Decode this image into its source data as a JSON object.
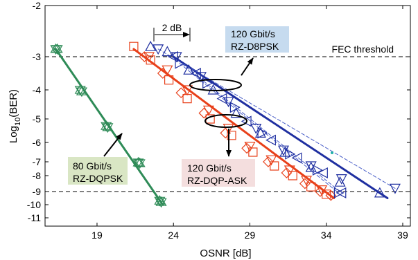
{
  "chart_data": {
    "type": "scatter",
    "title": "",
    "xlabel": "OSNR [dB]",
    "ylabel_main": "Log",
    "ylabel_sub": "10",
    "ylabel_tail": "(BER)",
    "xlim": [
      15.6,
      39.5
    ],
    "x_ticks": [
      19,
      24,
      29,
      34,
      39
    ],
    "y_ticks": [
      {
        "value": -2,
        "label": "-2"
      },
      {
        "value": -3,
        "label": "-3"
      },
      {
        "value": -4,
        "label": "-4"
      },
      {
        "value": -5,
        "label": "-5"
      },
      {
        "value": -6,
        "label": "-6"
      },
      {
        "value": -7,
        "label": "-7"
      },
      {
        "value": -8,
        "label": "-8"
      },
      {
        "value": -9,
        "label": "-9"
      },
      {
        "value": -10,
        "label": "-10"
      },
      {
        "value": -11,
        "label": "-11"
      }
    ],
    "grid": false,
    "threshold": {
      "label": "FEC threshold"
    },
    "annotations": {
      "db_marker": "2 dB",
      "label_80_line1": "80 Gbit/s",
      "label_80_line2": "RZ-DQPSK",
      "label_d8_line1": "120 Gbit/s",
      "label_d8_line2": "RZ-D8PSK",
      "label_ask_line1": "120 Gbit/s",
      "label_ask_line2": "RZ-DQP-ASK"
    },
    "colors": {
      "green": "#2e8b57",
      "red": "#e8401a",
      "blue": "#1f2fa0",
      "blue_light": "#4a5fc8",
      "box_green": "#d9e6c4",
      "box_blue": "#c6dbef",
      "box_red": "#f4dede"
    },
    "series": [
      {
        "id": "g1",
        "color": "green",
        "marker": "star",
        "points": [
          [
            16.3,
            -2.85
          ],
          [
            17.9,
            -4.0
          ],
          [
            19.6,
            -5.3
          ],
          [
            21.7,
            -7.05
          ],
          [
            23.1,
            -9.7
          ]
        ]
      },
      {
        "id": "g2",
        "color": "green",
        "marker": "star",
        "points": [
          [
            16.4,
            -2.85
          ],
          [
            18.0,
            -4.05
          ],
          [
            19.7,
            -5.35
          ],
          [
            21.8,
            -7.1
          ],
          [
            23.2,
            -9.8
          ]
        ]
      },
      {
        "id": "r_squares",
        "color": "red",
        "marker": "square",
        "points": [
          [
            21.4,
            -2.8
          ],
          [
            22.5,
            -3.1
          ],
          [
            23.7,
            -3.7
          ],
          [
            24.9,
            -4.3
          ],
          [
            26.4,
            -5.0
          ],
          [
            27.8,
            -5.7
          ],
          [
            29.2,
            -6.5
          ],
          [
            30.6,
            -7.3
          ],
          [
            31.8,
            -8.0
          ],
          [
            33.0,
            -8.7
          ],
          [
            34.0,
            -9.2
          ]
        ]
      },
      {
        "id": "r_diamonds",
        "color": "red",
        "marker": "diamond",
        "points": [
          [
            22.1,
            -3.0
          ],
          [
            23.3,
            -3.5
          ],
          [
            24.5,
            -4.1
          ],
          [
            26.0,
            -4.8
          ],
          [
            27.4,
            -5.6
          ],
          [
            28.8,
            -6.3
          ],
          [
            30.2,
            -7.0
          ],
          [
            31.4,
            -7.8
          ],
          [
            32.6,
            -8.5
          ],
          [
            33.6,
            -9.0
          ],
          [
            34.3,
            -9.3
          ]
        ]
      },
      {
        "id": "r_triangles",
        "color": "red",
        "marker": "tri-down",
        "points": [
          [
            22.4,
            -3.0
          ],
          [
            23.6,
            -3.4
          ],
          [
            24.9,
            -4.0
          ],
          [
            26.3,
            -4.7
          ],
          [
            27.6,
            -5.4
          ],
          [
            29.0,
            -6.2
          ],
          [
            30.4,
            -6.9
          ],
          [
            31.6,
            -7.6
          ],
          [
            32.7,
            -8.3
          ],
          [
            33.7,
            -8.9
          ]
        ]
      },
      {
        "id": "b_up",
        "color": "blue",
        "marker": "tri-up",
        "points": [
          [
            22.5,
            -2.8
          ],
          [
            23.6,
            -2.9
          ],
          [
            25.0,
            -3.4
          ],
          [
            26.6,
            -4.0
          ],
          [
            28.1,
            -4.8
          ],
          [
            29.7,
            -5.6
          ],
          [
            31.3,
            -6.5
          ],
          [
            33.0,
            -7.4
          ],
          [
            34.9,
            -8.4
          ],
          [
            37.5,
            -9.1
          ]
        ]
      },
      {
        "id": "b_down",
        "color": "blue",
        "marker": "tri-down",
        "points": [
          [
            23.0,
            -2.85
          ],
          [
            24.2,
            -3.0
          ],
          [
            25.8,
            -3.6
          ],
          [
            27.6,
            -4.4
          ],
          [
            29.4,
            -5.4
          ],
          [
            31.2,
            -6.4
          ],
          [
            33.0,
            -7.3
          ],
          [
            35.0,
            -8.2
          ],
          [
            38.5,
            -8.8
          ]
        ]
      },
      {
        "id": "b_left",
        "color": "blue",
        "marker": "tri-left",
        "points": [
          [
            24.0,
            -3.0
          ],
          [
            25.5,
            -3.5
          ],
          [
            27.2,
            -4.3
          ],
          [
            28.8,
            -5.1
          ],
          [
            30.4,
            -5.9
          ],
          [
            32.1,
            -6.8
          ],
          [
            33.8,
            -7.8
          ],
          [
            35.0,
            -9.1
          ]
        ]
      },
      {
        "id": "b_right",
        "color": "blue",
        "marker": "tri-right",
        "points": [
          [
            24.4,
            -3.2
          ],
          [
            26.2,
            -3.8
          ],
          [
            28.0,
            -4.6
          ],
          [
            29.8,
            -5.6
          ],
          [
            31.6,
            -6.6
          ],
          [
            33.4,
            -7.6
          ],
          [
            34.8,
            -9.1
          ]
        ]
      }
    ],
    "fits": [
      {
        "id": "fit_green",
        "color": "green",
        "width": 3,
        "dash": false,
        "from": [
          16.3,
          -2.85
        ],
        "to": [
          23.3,
          -10.0
        ]
      },
      {
        "id": "fit_red",
        "color": "red",
        "width": 3,
        "dash": false,
        "from": [
          21.4,
          -2.85
        ],
        "to": [
          34.5,
          -9.5
        ]
      },
      {
        "id": "fit_blue",
        "color": "blue",
        "width": 3,
        "dash": false,
        "from": [
          24.0,
          -3.0
        ],
        "to": [
          38.0,
          -9.5
        ]
      },
      {
        "id": "fit_blue_d1",
        "color": "blue_light",
        "width": 1,
        "dash": true,
        "from": [
          23.0,
          -2.85
        ],
        "to": [
          38.5,
          -8.8
        ]
      },
      {
        "id": "fit_blue_d2",
        "color": "blue_light",
        "width": 1,
        "dash": true,
        "from": [
          24.0,
          -3.0
        ],
        "to": [
          35.0,
          -9.1
        ]
      },
      {
        "id": "fit_blue_d3",
        "color": "blue_light",
        "width": 1,
        "dash": true,
        "from": [
          24.4,
          -3.2
        ],
        "to": [
          34.8,
          -9.1
        ]
      }
    ]
  }
}
